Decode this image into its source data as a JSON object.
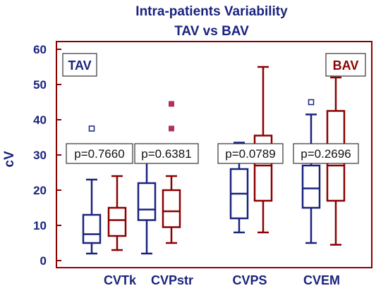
{
  "chart_data": {
    "type": "box",
    "title": "Intra-patients Variability",
    "subtitle": "TAV vs BAV",
    "ylabel": "cV",
    "ylim": [
      0,
      60
    ],
    "yticks": [
      "0",
      "10",
      "20",
      "30",
      "40",
      "50",
      "60"
    ],
    "categories": [
      "CVTk",
      "CVPstr",
      "CVPS",
      "CVEM"
    ],
    "p_values": [
      "p=0.7660",
      "p=0.6381",
      "p=0.0789",
      "p=0.2696"
    ],
    "legend": [
      {
        "name": "TAV",
        "color": "#1a237e",
        "position": "top-left"
      },
      {
        "name": "BAV",
        "color": "#8b0000",
        "position": "top-right"
      }
    ],
    "series": [
      {
        "name": "TAV",
        "color": "#1a237e",
        "boxes": [
          {
            "min": 2,
            "q1": 5,
            "median": 7.5,
            "q3": 13,
            "max": 23,
            "outliers": [
              37.5
            ]
          },
          {
            "min": 2,
            "q1": 11.5,
            "median": 14.5,
            "q3": 22,
            "max": 30,
            "outliers": []
          },
          {
            "min": 8,
            "q1": 12,
            "median": 19,
            "q3": 26,
            "max": 33.5,
            "outliers": []
          },
          {
            "min": 5,
            "q1": 15,
            "median": 20.5,
            "q3": 27,
            "max": 41.5,
            "outliers": [
              45
            ]
          }
        ]
      },
      {
        "name": "BAV",
        "color": "#8b0000",
        "boxes": [
          {
            "min": 3,
            "q1": 7,
            "median": 11.5,
            "q3": 15,
            "max": 24,
            "outliers": []
          },
          {
            "min": 5,
            "q1": 9.5,
            "median": 14,
            "q3": 20,
            "max": 24,
            "outliers": [
              44.5,
              37.5
            ]
          },
          {
            "min": 8,
            "q1": 17,
            "median": 27,
            "q3": 35.5,
            "max": 55,
            "outliers": []
          },
          {
            "min": 4.5,
            "q1": 17,
            "median": 27,
            "q3": 42.5,
            "max": 52,
            "outliers": []
          }
        ]
      }
    ],
    "outlier_colors": [
      "#1a237e",
      "#b03060"
    ]
  }
}
